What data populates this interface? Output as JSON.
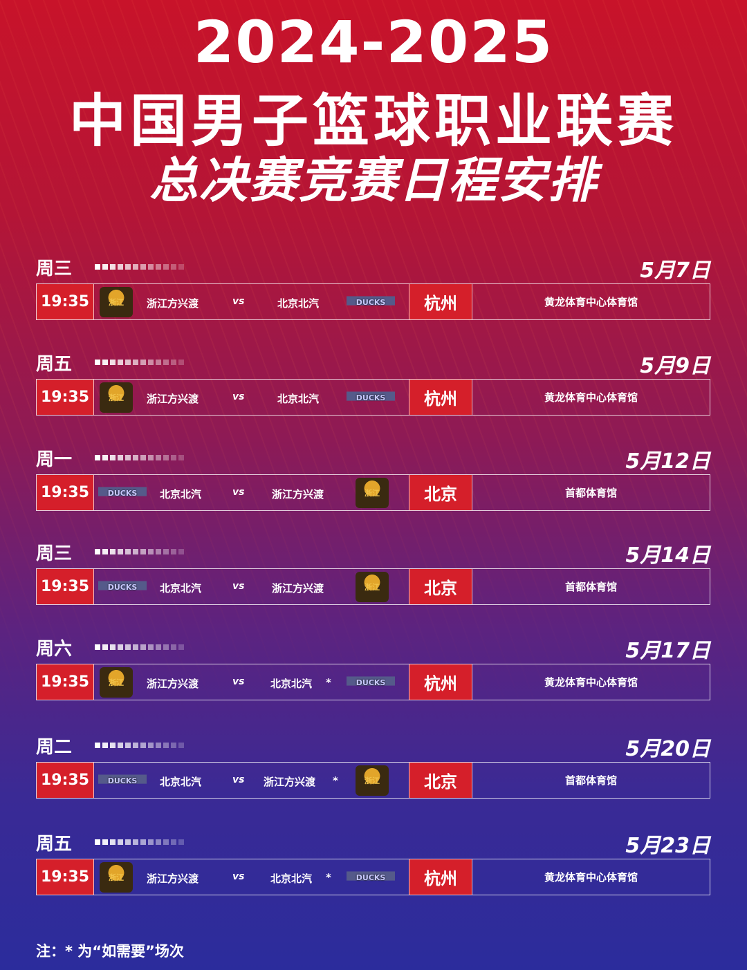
{
  "title": {
    "line1": "2024-2025",
    "line2": "中国男子篮球职业联赛",
    "line3": "总决赛竞赛日程安排"
  },
  "colors": {
    "accent_red": "#d51f2a",
    "bg_top": "#c8132a",
    "bg_bottom": "#2b2c9c"
  },
  "logos": {
    "zhejiang": {
      "icon": "lion-logo",
      "text": "浙江"
    },
    "beijing": {
      "icon": "ducks-logo",
      "text": "DUCKS"
    }
  },
  "vs_label": "vs",
  "games": [
    {
      "weekday": "周三",
      "date": "5月7日",
      "time": "19:35",
      "home": "浙江方兴渡",
      "home_logo": "zhejiang",
      "away": "北京北汽",
      "away_logo": "beijing",
      "if_needed": "",
      "city": "杭州",
      "venue": "黄龙体育中心体育馆"
    },
    {
      "weekday": "周五",
      "date": "5月9日",
      "time": "19:35",
      "home": "浙江方兴渡",
      "home_logo": "zhejiang",
      "away": "北京北汽",
      "away_logo": "beijing",
      "if_needed": "",
      "city": "杭州",
      "venue": "黄龙体育中心体育馆"
    },
    {
      "weekday": "周一",
      "date": "5月12日",
      "time": "19:35",
      "home": "北京北汽",
      "home_logo": "beijing",
      "away": "浙江方兴渡",
      "away_logo": "zhejiang",
      "if_needed": "",
      "city": "北京",
      "venue": "首都体育馆"
    },
    {
      "weekday": "周三",
      "date": "5月14日",
      "time": "19:35",
      "home": "北京北汽",
      "home_logo": "beijing",
      "away": "浙江方兴渡",
      "away_logo": "zhejiang",
      "if_needed": "",
      "city": "北京",
      "venue": "首都体育馆"
    },
    {
      "weekday": "周六",
      "date": "5月17日",
      "time": "19:35",
      "home": "浙江方兴渡",
      "home_logo": "zhejiang",
      "away": "北京北汽",
      "away_logo": "beijing",
      "if_needed": "*",
      "city": "杭州",
      "venue": "黄龙体育中心体育馆"
    },
    {
      "weekday": "周二",
      "date": "5月20日",
      "time": "19:35",
      "home": "北京北汽",
      "home_logo": "beijing",
      "away": "浙江方兴渡",
      "away_logo": "zhejiang",
      "if_needed": "*",
      "city": "北京",
      "venue": "首都体育馆"
    },
    {
      "weekday": "周五",
      "date": "5月23日",
      "time": "19:35",
      "home": "浙江方兴渡",
      "home_logo": "zhejiang",
      "away": "北京北汽",
      "away_logo": "beijing",
      "if_needed": "*",
      "city": "杭州",
      "venue": "黄龙体育中心体育馆"
    }
  ],
  "note": "注：* 为“如需要”场次"
}
